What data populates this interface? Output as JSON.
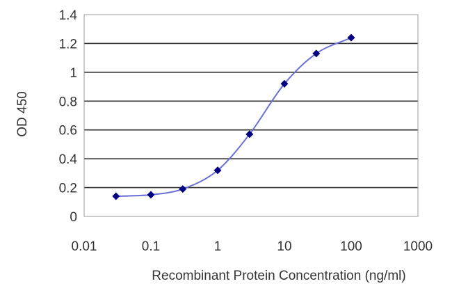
{
  "chart_data": {
    "type": "scatter",
    "title": "",
    "xlabel": "Recombinant Protein Concentration (ng/ml)",
    "ylabel": "OD 450",
    "x_scale": "log",
    "xlim": [
      0.01,
      1000
    ],
    "ylim": [
      0,
      1.4
    ],
    "x_ticks": [
      "0.01",
      "0.1",
      "1",
      "10",
      "100",
      "1000"
    ],
    "y_ticks": [
      "0",
      "0.2",
      "0.4",
      "0.6",
      "0.8",
      "1",
      "1.2",
      "1.4"
    ],
    "grid": "horizontal",
    "legend": "none",
    "fit_curve": "sigmoidal",
    "series": [
      {
        "x": [
          0.03,
          0.1,
          0.3,
          1,
          3,
          10,
          30,
          100
        ],
        "y": [
          0.14,
          0.15,
          0.19,
          0.32,
          0.57,
          0.92,
          1.13,
          1.24
        ],
        "color": "#000080"
      }
    ],
    "curve_color": "#6a6fd6"
  }
}
